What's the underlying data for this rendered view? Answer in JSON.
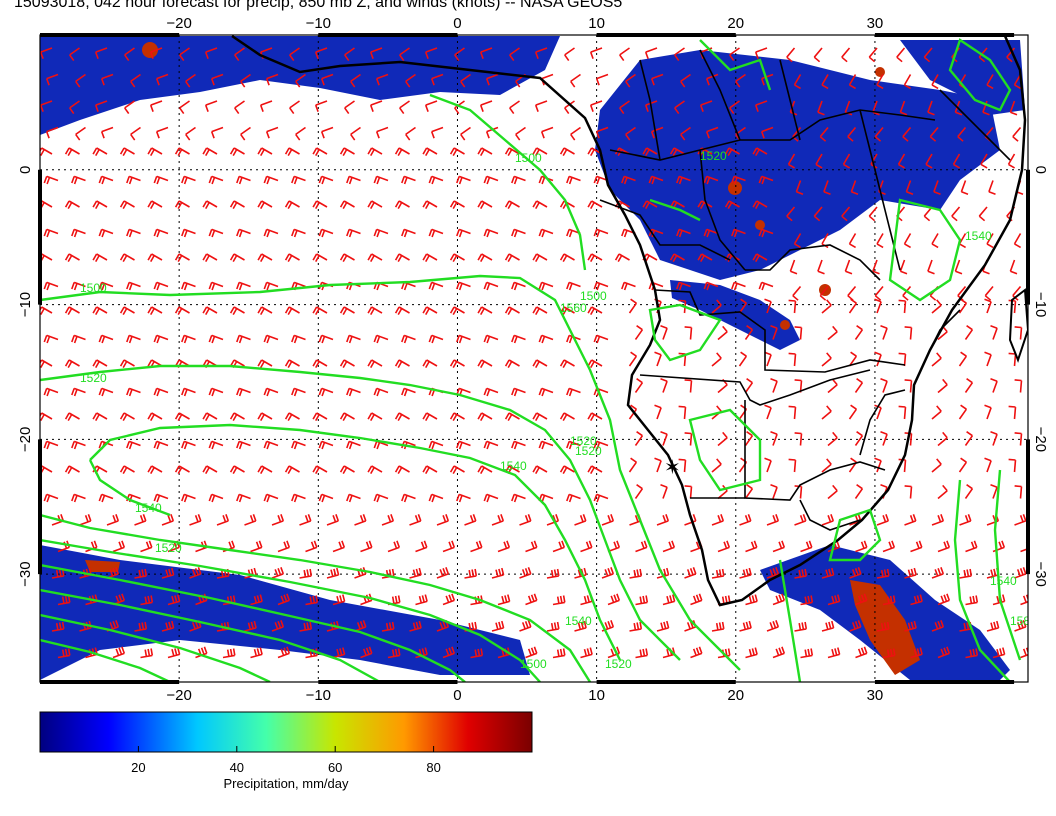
{
  "title": "15093018, 042 hour forecast for precip, 850 mb Z, and winds (knots) -- NASA GEOS5",
  "map": {
    "lon_range": [
      -30,
      41
    ],
    "lat_range": [
      -38,
      10
    ],
    "lon_ticks": [
      -20,
      -10,
      0,
      10,
      20,
      30
    ],
    "lat_ticks": [
      0,
      -10,
      -20,
      -30
    ],
    "lon_tick_labels": [
      "−20",
      "−10",
      "0",
      "10",
      "20",
      "30"
    ],
    "lat_tick_labels": [
      "0",
      "−10",
      "−20",
      "−30"
    ],
    "grid": true,
    "contour_labels": [
      "1500",
      "1520",
      "1540",
      "1520",
      "1540",
      "1520",
      "1500",
      "1520",
      "1540",
      "1560",
      "1540",
      "1580",
      "1500",
      "1520",
      "1540",
      "1520",
      "1500"
    ],
    "colors": {
      "contour": "#22dd22",
      "wind_barbs": "#ee1111",
      "coastline": "#000000",
      "precip_low": "#0a1a8c",
      "precip_high": "#7a0000"
    },
    "marker_label": "✶"
  },
  "colorbar": {
    "ticks": [
      "20",
      "40",
      "60",
      "80"
    ],
    "tick_values": [
      20,
      40,
      60,
      80
    ],
    "range": [
      0,
      100
    ],
    "label": "Precipitation, mm/day",
    "colors": [
      "#000080",
      "#0000ff",
      "#00c8ff",
      "#44ffaa",
      "#c8e600",
      "#ff9900",
      "#e00000",
      "#7a0000"
    ]
  }
}
